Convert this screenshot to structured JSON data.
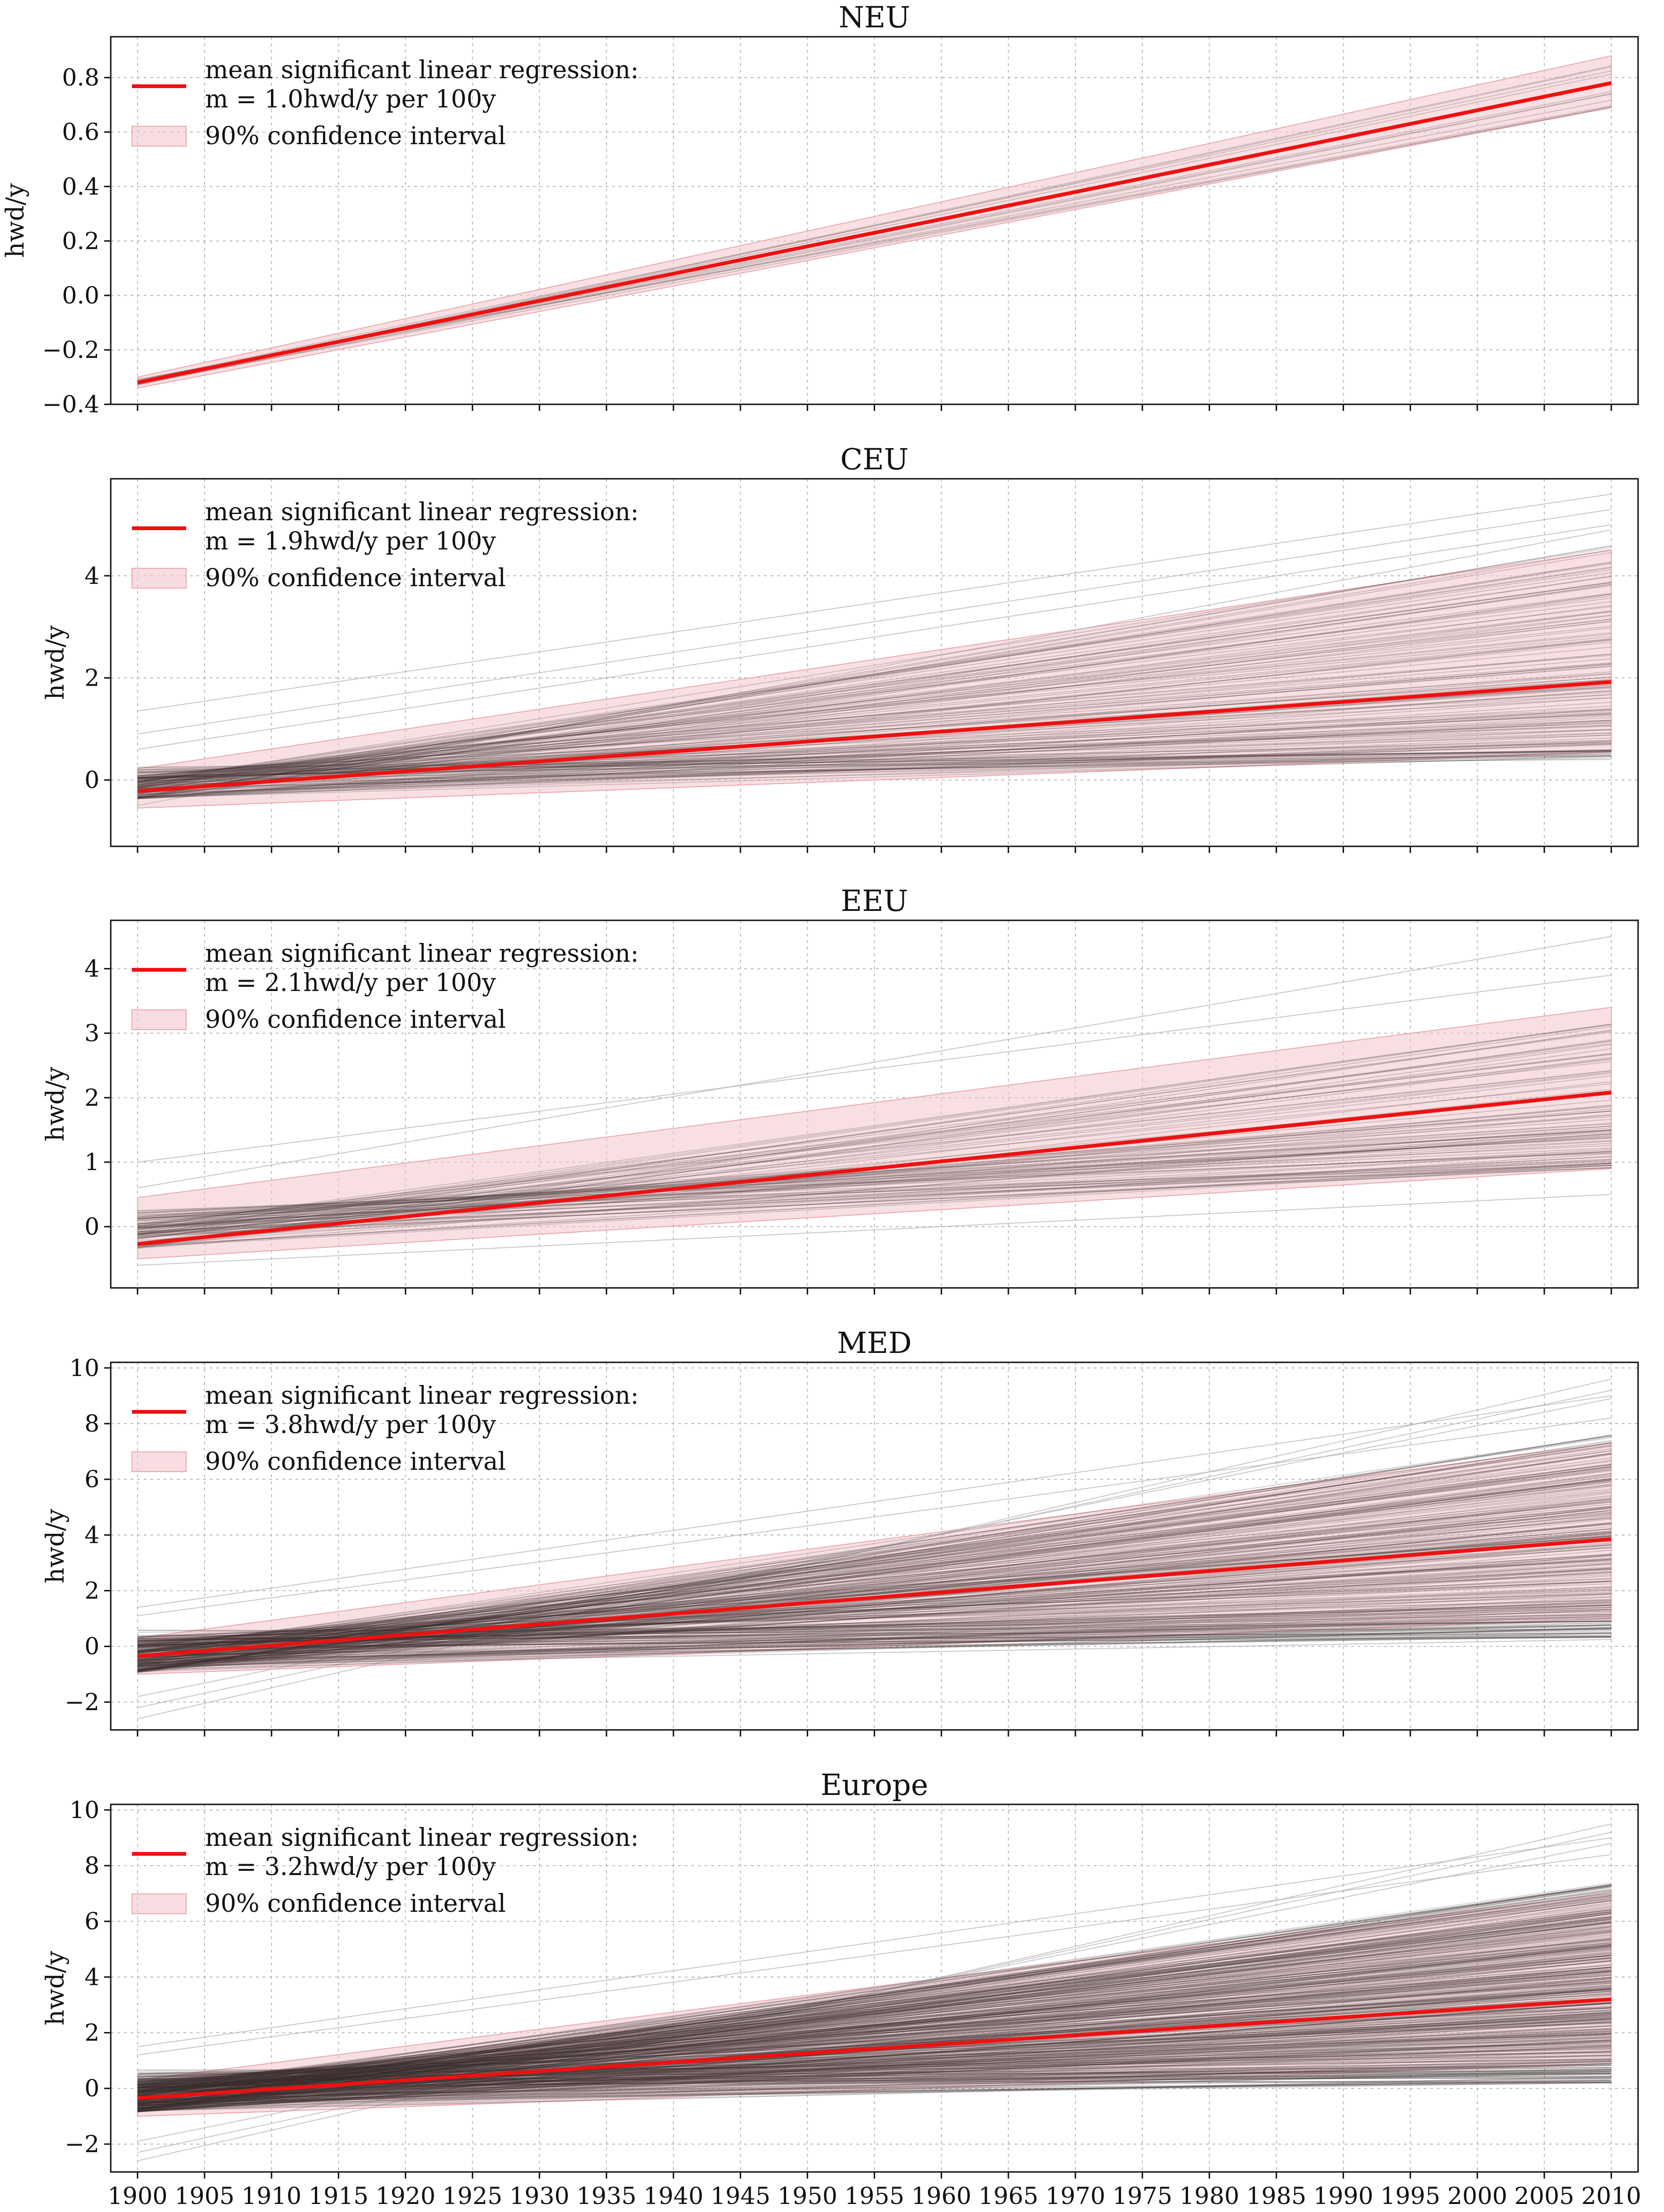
{
  "chart_data": [
    {
      "type": "line",
      "title": "NEU",
      "ylabel": "hwd/y",
      "xlim": [
        1898,
        2012
      ],
      "ylim": [
        -0.4,
        0.95
      ],
      "yticks": [
        -0.4,
        -0.2,
        0.0,
        0.2,
        0.4,
        0.6,
        0.8
      ],
      "ytick_labels": [
        "−0.4",
        "−0.2",
        "0.0",
        "0.2",
        "0.4",
        "0.6",
        "0.8"
      ],
      "grid": true,
      "legend_position": "top-left",
      "legend": {
        "mean_line": "mean significant linear regression:",
        "slope_text": "m = 1.0hwd/y per 100y",
        "ci": "90% confidence interval"
      },
      "mean_line": {
        "x": [
          1900,
          2010
        ],
        "y": [
          -0.32,
          0.78
        ]
      },
      "confidence_band": {
        "x": [
          1900,
          2010
        ],
        "lower": [
          -0.34,
          0.69
        ],
        "upper": [
          -0.3,
          0.88
        ]
      },
      "ensemble": {
        "count": 12,
        "start_range": [
          -0.34,
          -0.3
        ],
        "end_range": [
          0.68,
          0.9
        ],
        "seed": 11
      },
      "series": []
    },
    {
      "type": "line",
      "title": "CEU",
      "ylabel": "hwd/y",
      "xlim": [
        1898,
        2012
      ],
      "ylim": [
        -1.3,
        5.9
      ],
      "yticks": [
        0,
        2,
        4
      ],
      "ytick_labels": [
        "0",
        "2",
        "4"
      ],
      "grid": true,
      "legend_position": "top-left",
      "legend": {
        "mean_line": "mean significant linear regression:",
        "slope_text": "m = 1.9hwd/y per 100y",
        "ci": "90% confidence interval"
      },
      "mean_line": {
        "x": [
          1900,
          2010
        ],
        "y": [
          -0.22,
          1.92
        ]
      },
      "confidence_band": {
        "x": [
          1900,
          2010
        ],
        "lower": [
          -0.55,
          0.55
        ],
        "upper": [
          0.22,
          4.5
        ]
      },
      "ensemble": {
        "count": 140,
        "start_range": [
          -0.6,
          0.3
        ],
        "end_range": [
          0.4,
          4.6
        ],
        "seed": 23
      },
      "outliers": [
        {
          "y0": 1.35,
          "y1": 5.6
        },
        {
          "y0": 0.9,
          "y1": 5.3
        },
        {
          "y0": 0.6,
          "y1": 5.0
        },
        {
          "y0": -0.5,
          "y1": 4.9
        }
      ],
      "series": []
    },
    {
      "type": "line",
      "title": "EEU",
      "ylabel": "hwd/y",
      "xlim": [
        1898,
        2012
      ],
      "ylim": [
        -0.95,
        4.75
      ],
      "yticks": [
        0,
        1,
        2,
        3,
        4
      ],
      "ytick_labels": [
        "0",
        "1",
        "2",
        "3",
        "4"
      ],
      "grid": true,
      "legend_position": "top-left",
      "legend": {
        "mean_line": "mean significant linear regression:",
        "slope_text": "m = 2.1hwd/y per 100y",
        "ci": "90% confidence interval"
      },
      "mean_line": {
        "x": [
          1900,
          2010
        ],
        "y": [
          -0.27,
          2.08
        ]
      },
      "confidence_band": {
        "x": [
          1900,
          2010
        ],
        "lower": [
          -0.5,
          0.9
        ],
        "upper": [
          0.45,
          3.4
        ]
      },
      "ensemble": {
        "count": 90,
        "start_range": [
          -0.55,
          0.3
        ],
        "end_range": [
          0.9,
          3.3
        ],
        "seed": 37
      },
      "outliers": [
        {
          "y0": 0.6,
          "y1": 4.5
        },
        {
          "y0": 1.0,
          "y1": 3.9
        },
        {
          "y0": -0.6,
          "y1": 0.5
        }
      ],
      "series": []
    },
    {
      "type": "line",
      "title": "MED",
      "ylabel": "hwd/y",
      "xlim": [
        1898,
        2012
      ],
      "ylim": [
        -3.0,
        10.2
      ],
      "yticks": [
        -2,
        0,
        2,
        4,
        6,
        8,
        10
      ],
      "ytick_labels": [
        "−2",
        "0",
        "2",
        "4",
        "6",
        "8",
        "10"
      ],
      "grid": true,
      "legend_position": "top-left",
      "legend": {
        "mean_line": "mean significant linear regression:",
        "slope_text": "m = 3.8hwd/y per 100y",
        "ci": "90% confidence interval"
      },
      "mean_line": {
        "x": [
          1900,
          2010
        ],
        "y": [
          -0.35,
          3.85
        ]
      },
      "confidence_band": {
        "x": [
          1900,
          2010
        ],
        "lower": [
          -1.0,
          1.0
        ],
        "upper": [
          0.3,
          7.3
        ]
      },
      "ensemble": {
        "count": 260,
        "start_range": [
          -1.5,
          0.7
        ],
        "end_range": [
          0.3,
          7.6
        ],
        "seed": 53
      },
      "outliers": [
        {
          "y0": -2.6,
          "y1": 9.6
        },
        {
          "y0": -2.2,
          "y1": 9.2
        },
        {
          "y0": -1.8,
          "y1": 8.9
        },
        {
          "y0": 1.4,
          "y1": 9.0
        },
        {
          "y0": 1.1,
          "y1": 8.2
        },
        {
          "y0": -0.7,
          "y1": 0.25
        }
      ],
      "series": []
    },
    {
      "type": "line",
      "title": "Europe",
      "ylabel": "hwd/y",
      "xlabel": "",
      "xlim": [
        1898,
        2012
      ],
      "ylim": [
        -3.0,
        10.2
      ],
      "yticks": [
        -2,
        0,
        2,
        4,
        6,
        8,
        10
      ],
      "ytick_labels": [
        "−2",
        "0",
        "2",
        "4",
        "6",
        "8",
        "10"
      ],
      "xticks": [
        1900,
        1905,
        1910,
        1915,
        1920,
        1925,
        1930,
        1935,
        1940,
        1945,
        1950,
        1955,
        1960,
        1965,
        1970,
        1975,
        1980,
        1985,
        1990,
        1995,
        2000,
        2005,
        2010
      ],
      "grid": true,
      "legend_position": "top-left",
      "legend": {
        "mean_line": "mean significant linear regression:",
        "slope_text": "m = 3.2hwd/y per 100y",
        "ci": "90% confidence interval"
      },
      "mean_line": {
        "x": [
          1900,
          2010
        ],
        "y": [
          -0.35,
          3.2
        ]
      },
      "confidence_band": {
        "x": [
          1900,
          2010
        ],
        "lower": [
          -1.0,
          0.9
        ],
        "upper": [
          0.3,
          7.0
        ]
      },
      "ensemble": {
        "count": 420,
        "start_range": [
          -1.4,
          0.8
        ],
        "end_range": [
          0.2,
          7.4
        ],
        "seed": 71
      },
      "outliers": [
        {
          "y0": -2.6,
          "y1": 9.5
        },
        {
          "y0": -2.3,
          "y1": 9.2
        },
        {
          "y0": -1.9,
          "y1": 8.8
        },
        {
          "y0": 1.5,
          "y1": 9.0
        },
        {
          "y0": 1.2,
          "y1": 8.4
        },
        {
          "y0": -0.6,
          "y1": 0.3
        }
      ],
      "series": []
    }
  ],
  "colors": {
    "mean_line": "#ee1111",
    "confidence_band": "#f3c6cb",
    "ensemble_line": "#3a2f2f",
    "outlier_line": "#b0b0b8"
  }
}
